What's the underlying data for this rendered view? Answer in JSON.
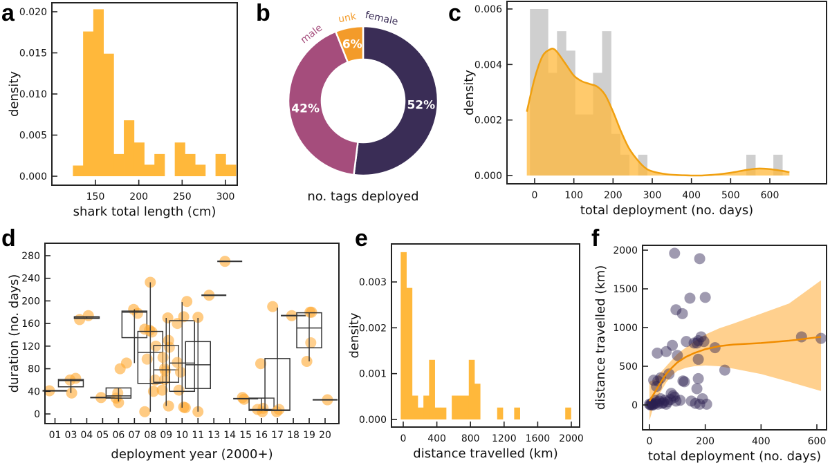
{
  "colors": {
    "hist_orange": "#ffb83b",
    "gray_bar": "#cfcfcf",
    "kde_line": "#f0a010",
    "kde_fill": "#e39c18",
    "female": "#3a2d56",
    "male": "#a54d7c",
    "unk": "#f39b2a",
    "box_point": "#ffa930",
    "scatter_point": "#2b2050",
    "ci_band": "#ffc87a",
    "fit_line": "#f08c00"
  },
  "chart_data": [
    {
      "id": "a",
      "panel_letter": "a",
      "type": "bar",
      "subtype": "histogram",
      "title": "",
      "xlabel": "shark total length (cm)",
      "ylabel": "density",
      "xlim": [
        112,
        312
      ],
      "ylim": [
        -0.001,
        0.0215
      ],
      "xticks": [
        150,
        200,
        250,
        300
      ],
      "xtick_labels": [
        "150",
        "200",
        "250",
        "300"
      ],
      "yticks": [
        0.0,
        0.005,
        0.01,
        0.015,
        0.02
      ],
      "ytick_labels": [
        "0.000",
        "0.005",
        "0.010",
        "0.015",
        "0.020"
      ],
      "bin_start": 124,
      "bin_width": 11.75,
      "values": [
        0.0013,
        0.0176,
        0.0203,
        0.0149,
        0.0027,
        0.0068,
        0.0041,
        0.0014,
        0.0027,
        0.0,
        0.0041,
        0.0027,
        0.0014,
        0.0,
        0.0027,
        0.0014
      ]
    },
    {
      "id": "b",
      "panel_letter": "b",
      "type": "pie",
      "subtype": "donut",
      "xlabel": "no. tags deployed",
      "slices": [
        {
          "name": "female",
          "value": 52,
          "label": "52%"
        },
        {
          "name": "male",
          "value": 42,
          "label": "42%"
        },
        {
          "name": "unk",
          "value": 6,
          "label": "6%"
        }
      ]
    },
    {
      "id": "c",
      "panel_letter": "c",
      "type": "bar",
      "subtype": "histogram+kde",
      "xlabel": "total deployment (no. days)",
      "ylabel": "density",
      "xlim": [
        -55,
        680
      ],
      "ylim": [
        -0.0003,
        0.0062
      ],
      "xticks": [
        0,
        100,
        200,
        300,
        400,
        500,
        600
      ],
      "xtick_labels": [
        "0",
        "100",
        "200",
        "300",
        "400",
        "500",
        "600"
      ],
      "yticks": [
        0.0,
        0.002,
        0.004,
        0.006
      ],
      "ytick_labels": [
        "0.000",
        "0.002",
        "0.004",
        "0.006"
      ],
      "bin_start": -12,
      "bin_width": 23,
      "values": [
        0.006,
        0.006,
        0.0037,
        0.0052,
        0.0045,
        0.0022,
        0.0022,
        0.0037,
        0.0052,
        0.0015,
        0.00075,
        0.0,
        0.00075,
        0,
        0,
        0,
        0,
        0,
        0,
        0,
        0,
        0,
        0,
        0,
        0.00075,
        0,
        0,
        0.00075
      ],
      "kde": {
        "x": [
          -20,
          0,
          20,
          40,
          50,
          60,
          80,
          100,
          120,
          140,
          160,
          180,
          200,
          220,
          240,
          260,
          280,
          300,
          340,
          380,
          420,
          460,
          500,
          540,
          570,
          600,
          630,
          650
        ],
        "y": [
          0.0023,
          0.0035,
          0.0043,
          0.00455,
          0.00455,
          0.0044,
          0.004,
          0.0036,
          0.0034,
          0.0033,
          0.0032,
          0.0029,
          0.0023,
          0.0016,
          0.001,
          0.0006,
          0.0003,
          0.00015,
          4e-05,
          1e-05,
          0.0,
          3e-05,
          0.0001,
          0.0002,
          0.00025,
          0.00023,
          0.00017,
          0.00012
        ]
      }
    },
    {
      "id": "d",
      "panel_letter": "d",
      "type": "scatter",
      "subtype": "boxplot+jitter",
      "xlabel": "deployment year (2000+)",
      "ylabel": "duration (no. days)",
      "ylim": [
        -15,
        295
      ],
      "yticks": [
        0,
        40,
        80,
        120,
        160,
        200,
        240,
        280
      ],
      "ytick_labels": [
        "0",
        "40",
        "80",
        "120",
        "160",
        "200",
        "240",
        "280"
      ],
      "categories": [
        "01",
        "03",
        "04",
        "05",
        "06",
        "07",
        "08",
        "09",
        "10",
        "11",
        "13",
        "14",
        "15",
        "16",
        "17",
        "18",
        "19",
        "20"
      ],
      "boxes": [
        {
          "year": "01",
          "q1": 41,
          "median": 41,
          "q3": 41,
          "lo": 41,
          "hi": 41,
          "points": [
            [
              -0.35,
              41
            ]
          ]
        },
        {
          "year": "03",
          "q1": 48,
          "median": 59,
          "q3": 61,
          "lo": 37,
          "hi": 61,
          "points": [
            [
              -0.05,
              60
            ],
            [
              0.3,
              63
            ],
            [
              0.05,
              37
            ]
          ]
        },
        {
          "year": "04",
          "q1": 169,
          "median": 170,
          "q3": 172,
          "lo": 168,
          "hi": 173,
          "points": [
            [
              -0.45,
              167
            ],
            [
              0.1,
              174
            ]
          ]
        },
        {
          "year": "05",
          "q1": 29,
          "median": 29,
          "q3": 29,
          "lo": 29,
          "hi": 29,
          "points": [
            [
              -0.1,
              29
            ]
          ]
        },
        {
          "year": "06",
          "q1": 28,
          "median": 32,
          "q3": 46,
          "lo": 22,
          "hi": 46,
          "points": [
            [
              -0.05,
              37
            ],
            [
              -0.15,
              28
            ],
            [
              0.0,
              20
            ]
          ]
        },
        {
          "year": "07",
          "q1": 135,
          "median": 180,
          "q3": 182,
          "lo": 90,
          "hi": 185,
          "points": [
            [
              -0.9,
              80
            ],
            [
              -0.5,
              90
            ],
            [
              -0.05,
              185
            ],
            [
              0.2,
              178
            ]
          ]
        },
        {
          "year": "08",
          "q1": 54,
          "median": 109,
          "q3": 146,
          "lo": 4,
          "hi": 233,
          "points": [
            [
              -0.35,
              150
            ],
            [
              0.1,
              145
            ],
            [
              0.35,
              120
            ],
            [
              -0.2,
              97
            ],
            [
              0.3,
              60
            ],
            [
              0.2,
              40
            ],
            [
              -0.35,
              4
            ],
            [
              0.0,
              233
            ],
            [
              -0.05,
              148
            ]
          ]
        },
        {
          "year": "09",
          "q1": 56,
          "median": 78,
          "q3": 121,
          "lo": 14,
          "hi": 170,
          "points": [
            [
              0.1,
              170
            ],
            [
              0.15,
              130
            ],
            [
              0.2,
              118
            ],
            [
              -0.1,
              80
            ],
            [
              -0.05,
              76
            ],
            [
              -0.1,
              61
            ],
            [
              -0.25,
              42
            ],
            [
              0.15,
              14
            ],
            [
              -0.2,
              100
            ]
          ]
        },
        {
          "year": "10",
          "q1": 40,
          "median": 90,
          "q3": 165,
          "lo": 11,
          "hi": 198,
          "points": [
            [
              0.3,
              199
            ],
            [
              0.1,
              172
            ],
            [
              -0.3,
              160
            ],
            [
              -0.3,
              91
            ],
            [
              -0.1,
              74
            ],
            [
              -0.2,
              42
            ],
            [
              0.1,
              12
            ],
            [
              0.2,
              11
            ]
          ]
        },
        {
          "year": "11",
          "q1": 45,
          "median": 87,
          "q3": 128,
          "lo": 4,
          "hi": 170,
          "points": [
            [
              0.0,
              171
            ],
            [
              0.0,
              4
            ]
          ]
        },
        {
          "year": "13",
          "q1": 210,
          "median": 210,
          "q3": 210,
          "lo": 210,
          "hi": 210,
          "points": [
            [
              -0.3,
              210
            ]
          ]
        },
        {
          "year": "14",
          "q1": 270,
          "median": 270,
          "q3": 270,
          "lo": 270,
          "hi": 270,
          "points": [
            [
              -0.3,
              270
            ]
          ]
        },
        {
          "year": "15",
          "q1": 27,
          "median": 27,
          "q3": 27,
          "lo": 27,
          "hi": 27,
          "points": [
            [
              -0.2,
              29
            ],
            [
              -0.1,
              26
            ]
          ]
        },
        {
          "year": "16",
          "q1": 6,
          "median": 8,
          "q3": 28,
          "lo": 6,
          "hi": 28,
          "points": [
            [
              -0.25,
              8
            ],
            [
              0.1,
              10
            ],
            [
              0.05,
              4
            ],
            [
              -0.05,
              89
            ]
          ]
        },
        {
          "year": "17",
          "q1": 6,
          "median": 7,
          "q3": 98,
          "lo": 6,
          "hi": 188,
          "points": [
            [
              -0.3,
              190
            ],
            [
              0.1,
              8
            ],
            [
              -0.05,
              4
            ]
          ]
        },
        {
          "year": "18",
          "q1": 174,
          "median": 174,
          "q3": 174,
          "lo": 174,
          "hi": 174,
          "points": [
            [
              -0.1,
              174
            ]
          ]
        },
        {
          "year": "19",
          "q1": 117,
          "median": 152,
          "q3": 179,
          "lo": 93,
          "hi": 179,
          "points": [
            [
              0.05,
              180
            ],
            [
              0.15,
              180
            ],
            [
              0.1,
              126
            ],
            [
              -0.15,
              93
            ]
          ]
        },
        {
          "year": "20",
          "q1": 25,
          "median": 25,
          "q3": 25,
          "lo": 25,
          "hi": 25,
          "points": [
            [
              0.15,
              25
            ]
          ]
        }
      ]
    },
    {
      "id": "e",
      "panel_letter": "e",
      "type": "bar",
      "subtype": "histogram",
      "xlabel": "distance travelled (km)",
      "ylabel": "density",
      "xlim": [
        -140,
        2100
      ],
      "ylim": [
        -0.00018,
        0.0038
      ],
      "xticks": [
        0,
        400,
        800,
        1200,
        1600,
        2000
      ],
      "xtick_labels": [
        "0",
        "400",
        "800",
        "1200",
        "1600",
        "2000"
      ],
      "yticks": [
        0.0,
        0.001,
        0.002,
        0.003
      ],
      "ytick_labels": [
        "0.000",
        "0.001",
        "0.002",
        "0.003"
      ],
      "bin_start": -30,
      "bin_width": 67.5,
      "values": [
        0.00365,
        0.00287,
        0.00052,
        0.00026,
        0.00052,
        0.0013,
        0.00026,
        0.00026,
        0,
        0.00052,
        0.00052,
        0.00052,
        0.0013,
        0.00078,
        0,
        0,
        0,
        0.00026,
        0,
        0,
        0.00026,
        0,
        0,
        0,
        0,
        0,
        0,
        0,
        0,
        0.00026
      ]
    },
    {
      "id": "f",
      "panel_letter": "f",
      "type": "scatter",
      "subtype": "scatter+fit",
      "xlabel": "total deployment (no. days)",
      "ylabel": "distance travelled (km)",
      "xlim": [
        -25,
        640
      ],
      "ylim": [
        -300,
        2080
      ],
      "xticks": [
        0,
        200,
        400,
        600
      ],
      "xtick_labels": [
        "0",
        "200",
        "400",
        "600"
      ],
      "yticks": [
        0,
        500,
        1000,
        1500,
        2000
      ],
      "ytick_labels": [
        "0",
        "500",
        "1000",
        "1500",
        "2000"
      ],
      "points": [
        [
          90,
          1960
        ],
        [
          180,
          1890
        ],
        [
          145,
          1380
        ],
        [
          200,
          1390
        ],
        [
          95,
          1230
        ],
        [
          118,
          1180
        ],
        [
          185,
          880
        ],
        [
          160,
          800
        ],
        [
          175,
          830
        ],
        [
          132,
          820
        ],
        [
          195,
          820
        ],
        [
          170,
          800
        ],
        [
          82,
          770
        ],
        [
          60,
          690
        ],
        [
          28,
          670
        ],
        [
          235,
          740
        ],
        [
          100,
          640
        ],
        [
          175,
          590
        ],
        [
          70,
          400
        ],
        [
          40,
          350
        ],
        [
          15,
          320
        ],
        [
          30,
          310
        ],
        [
          25,
          240
        ],
        [
          120,
          310
        ],
        [
          125,
          300
        ],
        [
          175,
          340
        ],
        [
          170,
          210
        ],
        [
          270,
          450
        ],
        [
          545,
          880
        ],
        [
          615,
          860
        ],
        [
          0,
          10
        ],
        [
          5,
          5
        ],
        [
          8,
          20
        ],
        [
          12,
          0
        ],
        [
          18,
          15
        ],
        [
          20,
          60
        ],
        [
          25,
          30
        ],
        [
          30,
          10
        ],
        [
          35,
          50
        ],
        [
          40,
          80
        ],
        [
          45,
          20
        ],
        [
          55,
          60
        ],
        [
          60,
          10
        ],
        [
          65,
          40
        ],
        [
          75,
          70
        ],
        [
          85,
          120
        ],
        [
          90,
          100
        ],
        [
          95,
          50
        ],
        [
          78,
          150
        ],
        [
          150,
          50
        ],
        [
          165,
          20
        ],
        [
          190,
          80
        ],
        [
          180,
          10
        ],
        [
          205,
          10
        ],
        [
          10,
          0
        ],
        [
          3,
          0
        ],
        [
          50,
          30
        ],
        [
          110,
          60
        ]
      ],
      "fit": {
        "x": [
          0,
          20,
          40,
          60,
          80,
          100,
          130,
          160,
          200,
          250,
          300,
          400,
          500,
          615
        ],
        "y": [
          50,
          170,
          290,
          400,
          480,
          550,
          620,
          670,
          720,
          760,
          780,
          800,
          830,
          880
        ],
        "lower": [
          -200,
          40,
          170,
          290,
          380,
          440,
          480,
          500,
          510,
          500,
          470,
          400,
          300,
          180
        ],
        "upper": [
          300,
          330,
          420,
          500,
          580,
          660,
          740,
          820,
          910,
          990,
          1050,
          1180,
          1310,
          1610
        ]
      }
    }
  ]
}
